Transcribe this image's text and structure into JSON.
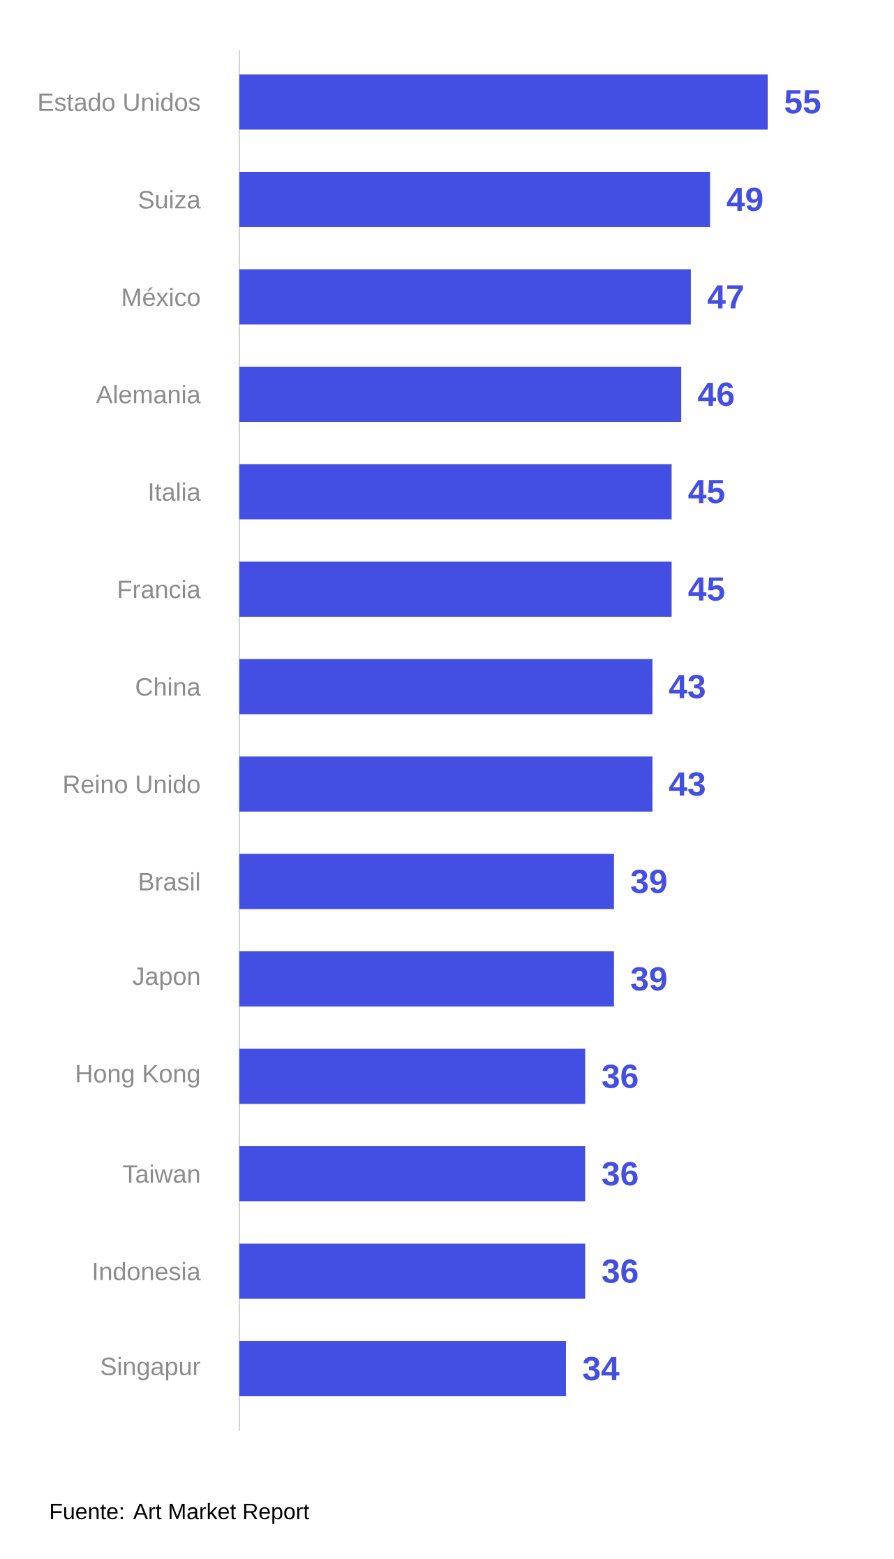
{
  "chart_data": {
    "type": "bar",
    "orientation": "horizontal",
    "categories": [
      "Estado Unidos",
      "Suiza",
      "México",
      "Alemania",
      "Italia",
      "Francia",
      "China",
      "Reino Unido",
      "Brasil",
      "Japon",
      "Hong Kong",
      "Taiwan",
      "Indonesia",
      "Singapur"
    ],
    "values": [
      55,
      49,
      47,
      46,
      45,
      45,
      43,
      43,
      39,
      39,
      36,
      36,
      36,
      34
    ],
    "color": "#434ee2",
    "data_labels": true,
    "annotations": [
      "Fuente: Art Market Report"
    ]
  }
}
